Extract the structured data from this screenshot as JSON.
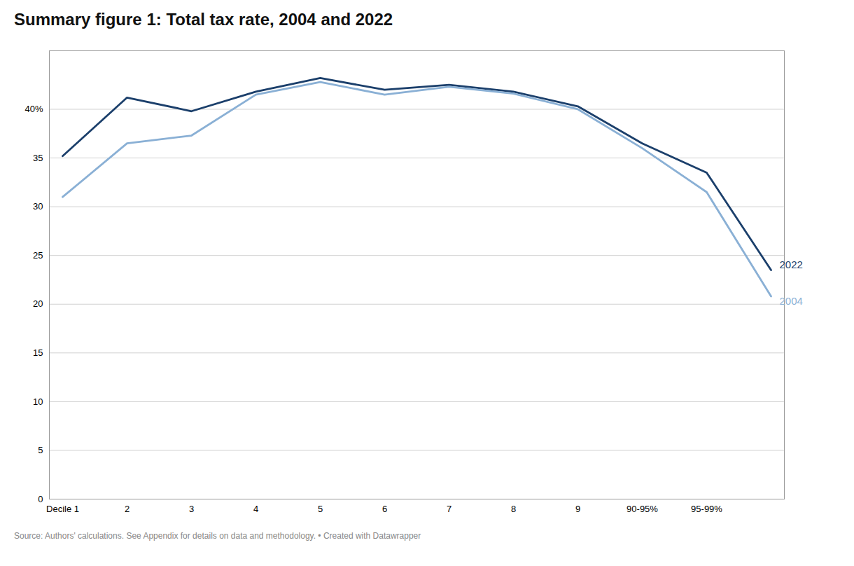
{
  "chart_data": {
    "type": "line",
    "title": "Summary figure 1: Total tax rate, 2004 and 2022",
    "caption": "Source: Authors' calculations. See Appendix for details on data and methodology.  •  Created with Datawrapper",
    "categories": [
      "Decile 1",
      "2",
      "3",
      "4",
      "5",
      "6",
      "7",
      "8",
      "9",
      "90-95%",
      "95-99%",
      null
    ],
    "series": [
      {
        "name": "2022",
        "color": "#1b3f6b",
        "values": [
          35.2,
          41.2,
          39.8,
          41.8,
          43.2,
          42.0,
          42.5,
          41.8,
          40.3,
          36.5,
          33.5,
          23.5
        ]
      },
      {
        "name": "2004",
        "color": "#8ab0d5",
        "values": [
          31.0,
          36.5,
          37.3,
          41.5,
          42.8,
          41.5,
          42.3,
          41.6,
          40.0,
          36.0,
          31.5,
          20.8
        ]
      }
    ],
    "ylim": [
      0,
      46
    ],
    "yticks": [
      0,
      5,
      10,
      15,
      20,
      25,
      30,
      35,
      {
        "value": 40,
        "label": "40%"
      }
    ],
    "grid": true
  }
}
